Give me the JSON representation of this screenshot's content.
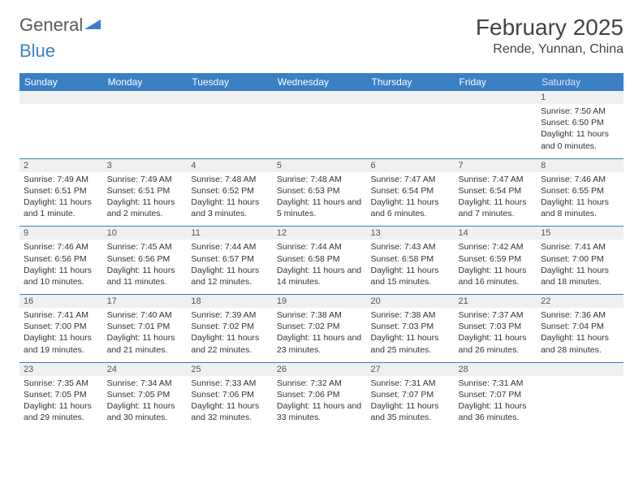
{
  "logo": {
    "text1": "General",
    "text2": "Blue"
  },
  "title": "February 2025",
  "location": "Rende, Yunnan, China",
  "header_bg": "#3b7fc4",
  "header_fg": "#ffffff",
  "daynum_bg": "#f0f0f0",
  "sep_color": "#3b7fc4",
  "days": [
    "Sunday",
    "Monday",
    "Tuesday",
    "Wednesday",
    "Thursday",
    "Friday",
    "Saturday"
  ],
  "weeks": [
    [
      {
        "n": "",
        "sr": "",
        "ss": "",
        "dl": ""
      },
      {
        "n": "",
        "sr": "",
        "ss": "",
        "dl": ""
      },
      {
        "n": "",
        "sr": "",
        "ss": "",
        "dl": ""
      },
      {
        "n": "",
        "sr": "",
        "ss": "",
        "dl": ""
      },
      {
        "n": "",
        "sr": "",
        "ss": "",
        "dl": ""
      },
      {
        "n": "",
        "sr": "",
        "ss": "",
        "dl": ""
      },
      {
        "n": "1",
        "sr": "Sunrise: 7:50 AM",
        "ss": "Sunset: 6:50 PM",
        "dl": "Daylight: 11 hours and 0 minutes."
      }
    ],
    [
      {
        "n": "2",
        "sr": "Sunrise: 7:49 AM",
        "ss": "Sunset: 6:51 PM",
        "dl": "Daylight: 11 hours and 1 minute."
      },
      {
        "n": "3",
        "sr": "Sunrise: 7:49 AM",
        "ss": "Sunset: 6:51 PM",
        "dl": "Daylight: 11 hours and 2 minutes."
      },
      {
        "n": "4",
        "sr": "Sunrise: 7:48 AM",
        "ss": "Sunset: 6:52 PM",
        "dl": "Daylight: 11 hours and 3 minutes."
      },
      {
        "n": "5",
        "sr": "Sunrise: 7:48 AM",
        "ss": "Sunset: 6:53 PM",
        "dl": "Daylight: 11 hours and 5 minutes."
      },
      {
        "n": "6",
        "sr": "Sunrise: 7:47 AM",
        "ss": "Sunset: 6:54 PM",
        "dl": "Daylight: 11 hours and 6 minutes."
      },
      {
        "n": "7",
        "sr": "Sunrise: 7:47 AM",
        "ss": "Sunset: 6:54 PM",
        "dl": "Daylight: 11 hours and 7 minutes."
      },
      {
        "n": "8",
        "sr": "Sunrise: 7:46 AM",
        "ss": "Sunset: 6:55 PM",
        "dl": "Daylight: 11 hours and 8 minutes."
      }
    ],
    [
      {
        "n": "9",
        "sr": "Sunrise: 7:46 AM",
        "ss": "Sunset: 6:56 PM",
        "dl": "Daylight: 11 hours and 10 minutes."
      },
      {
        "n": "10",
        "sr": "Sunrise: 7:45 AM",
        "ss": "Sunset: 6:56 PM",
        "dl": "Daylight: 11 hours and 11 minutes."
      },
      {
        "n": "11",
        "sr": "Sunrise: 7:44 AM",
        "ss": "Sunset: 6:57 PM",
        "dl": "Daylight: 11 hours and 12 minutes."
      },
      {
        "n": "12",
        "sr": "Sunrise: 7:44 AM",
        "ss": "Sunset: 6:58 PM",
        "dl": "Daylight: 11 hours and 14 minutes."
      },
      {
        "n": "13",
        "sr": "Sunrise: 7:43 AM",
        "ss": "Sunset: 6:58 PM",
        "dl": "Daylight: 11 hours and 15 minutes."
      },
      {
        "n": "14",
        "sr": "Sunrise: 7:42 AM",
        "ss": "Sunset: 6:59 PM",
        "dl": "Daylight: 11 hours and 16 minutes."
      },
      {
        "n": "15",
        "sr": "Sunrise: 7:41 AM",
        "ss": "Sunset: 7:00 PM",
        "dl": "Daylight: 11 hours and 18 minutes."
      }
    ],
    [
      {
        "n": "16",
        "sr": "Sunrise: 7:41 AM",
        "ss": "Sunset: 7:00 PM",
        "dl": "Daylight: 11 hours and 19 minutes."
      },
      {
        "n": "17",
        "sr": "Sunrise: 7:40 AM",
        "ss": "Sunset: 7:01 PM",
        "dl": "Daylight: 11 hours and 21 minutes."
      },
      {
        "n": "18",
        "sr": "Sunrise: 7:39 AM",
        "ss": "Sunset: 7:02 PM",
        "dl": "Daylight: 11 hours and 22 minutes."
      },
      {
        "n": "19",
        "sr": "Sunrise: 7:38 AM",
        "ss": "Sunset: 7:02 PM",
        "dl": "Daylight: 11 hours and 23 minutes."
      },
      {
        "n": "20",
        "sr": "Sunrise: 7:38 AM",
        "ss": "Sunset: 7:03 PM",
        "dl": "Daylight: 11 hours and 25 minutes."
      },
      {
        "n": "21",
        "sr": "Sunrise: 7:37 AM",
        "ss": "Sunset: 7:03 PM",
        "dl": "Daylight: 11 hours and 26 minutes."
      },
      {
        "n": "22",
        "sr": "Sunrise: 7:36 AM",
        "ss": "Sunset: 7:04 PM",
        "dl": "Daylight: 11 hours and 28 minutes."
      }
    ],
    [
      {
        "n": "23",
        "sr": "Sunrise: 7:35 AM",
        "ss": "Sunset: 7:05 PM",
        "dl": "Daylight: 11 hours and 29 minutes."
      },
      {
        "n": "24",
        "sr": "Sunrise: 7:34 AM",
        "ss": "Sunset: 7:05 PM",
        "dl": "Daylight: 11 hours and 30 minutes."
      },
      {
        "n": "25",
        "sr": "Sunrise: 7:33 AM",
        "ss": "Sunset: 7:06 PM",
        "dl": "Daylight: 11 hours and 32 minutes."
      },
      {
        "n": "26",
        "sr": "Sunrise: 7:32 AM",
        "ss": "Sunset: 7:06 PM",
        "dl": "Daylight: 11 hours and 33 minutes."
      },
      {
        "n": "27",
        "sr": "Sunrise: 7:31 AM",
        "ss": "Sunset: 7:07 PM",
        "dl": "Daylight: 11 hours and 35 minutes."
      },
      {
        "n": "28",
        "sr": "Sunrise: 7:31 AM",
        "ss": "Sunset: 7:07 PM",
        "dl": "Daylight: 11 hours and 36 minutes."
      },
      {
        "n": "",
        "sr": "",
        "ss": "",
        "dl": ""
      }
    ]
  ]
}
